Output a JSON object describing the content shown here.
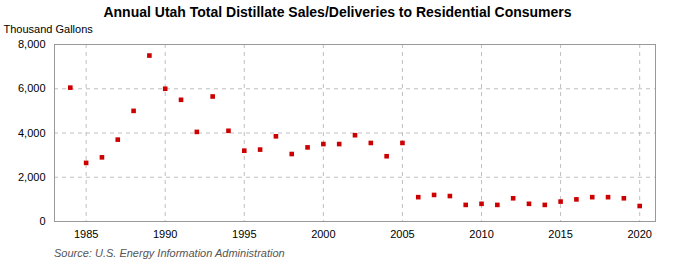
{
  "chart_data": {
    "type": "scatter",
    "title": "Annual Utah Total Distillate Sales/Deliveries to Residential Consumers",
    "ylabel": "Thousand Gallons",
    "source": "Source: U.S. Energy Information Administration",
    "x": [
      1984,
      1985,
      1986,
      1987,
      1988,
      1989,
      1990,
      1991,
      1992,
      1993,
      1994,
      1995,
      1996,
      1997,
      1998,
      1999,
      2000,
      2001,
      2002,
      2003,
      2004,
      2005,
      2006,
      2007,
      2008,
      2009,
      2010,
      2011,
      2012,
      2013,
      2014,
      2015,
      2016,
      2017,
      2018,
      2019,
      2020
    ],
    "values": [
      6050,
      2650,
      2900,
      3700,
      5000,
      7500,
      6000,
      5500,
      4050,
      5650,
      4100,
      3200,
      3250,
      3850,
      3050,
      3350,
      3500,
      3500,
      3900,
      3550,
      2950,
      3550,
      1100,
      1200,
      1150,
      750,
      800,
      750,
      1050,
      800,
      750,
      900,
      1000,
      1100,
      1100,
      1050,
      700
    ],
    "color": "#cc0000",
    "marker": "square",
    "xlim": [
      1983,
      2021
    ],
    "ylim": [
      0,
      8000
    ],
    "xticks": [
      1985,
      1990,
      1995,
      2000,
      2005,
      2010,
      2015,
      2020
    ],
    "yticks": [
      0,
      {
        "value": 2000,
        "label": "2,000"
      },
      {
        "value": 4000,
        "label": "4,000"
      },
      {
        "value": 6000,
        "label": "6,000"
      },
      {
        "value": 8000,
        "label": "8,000"
      }
    ],
    "grid": true
  }
}
